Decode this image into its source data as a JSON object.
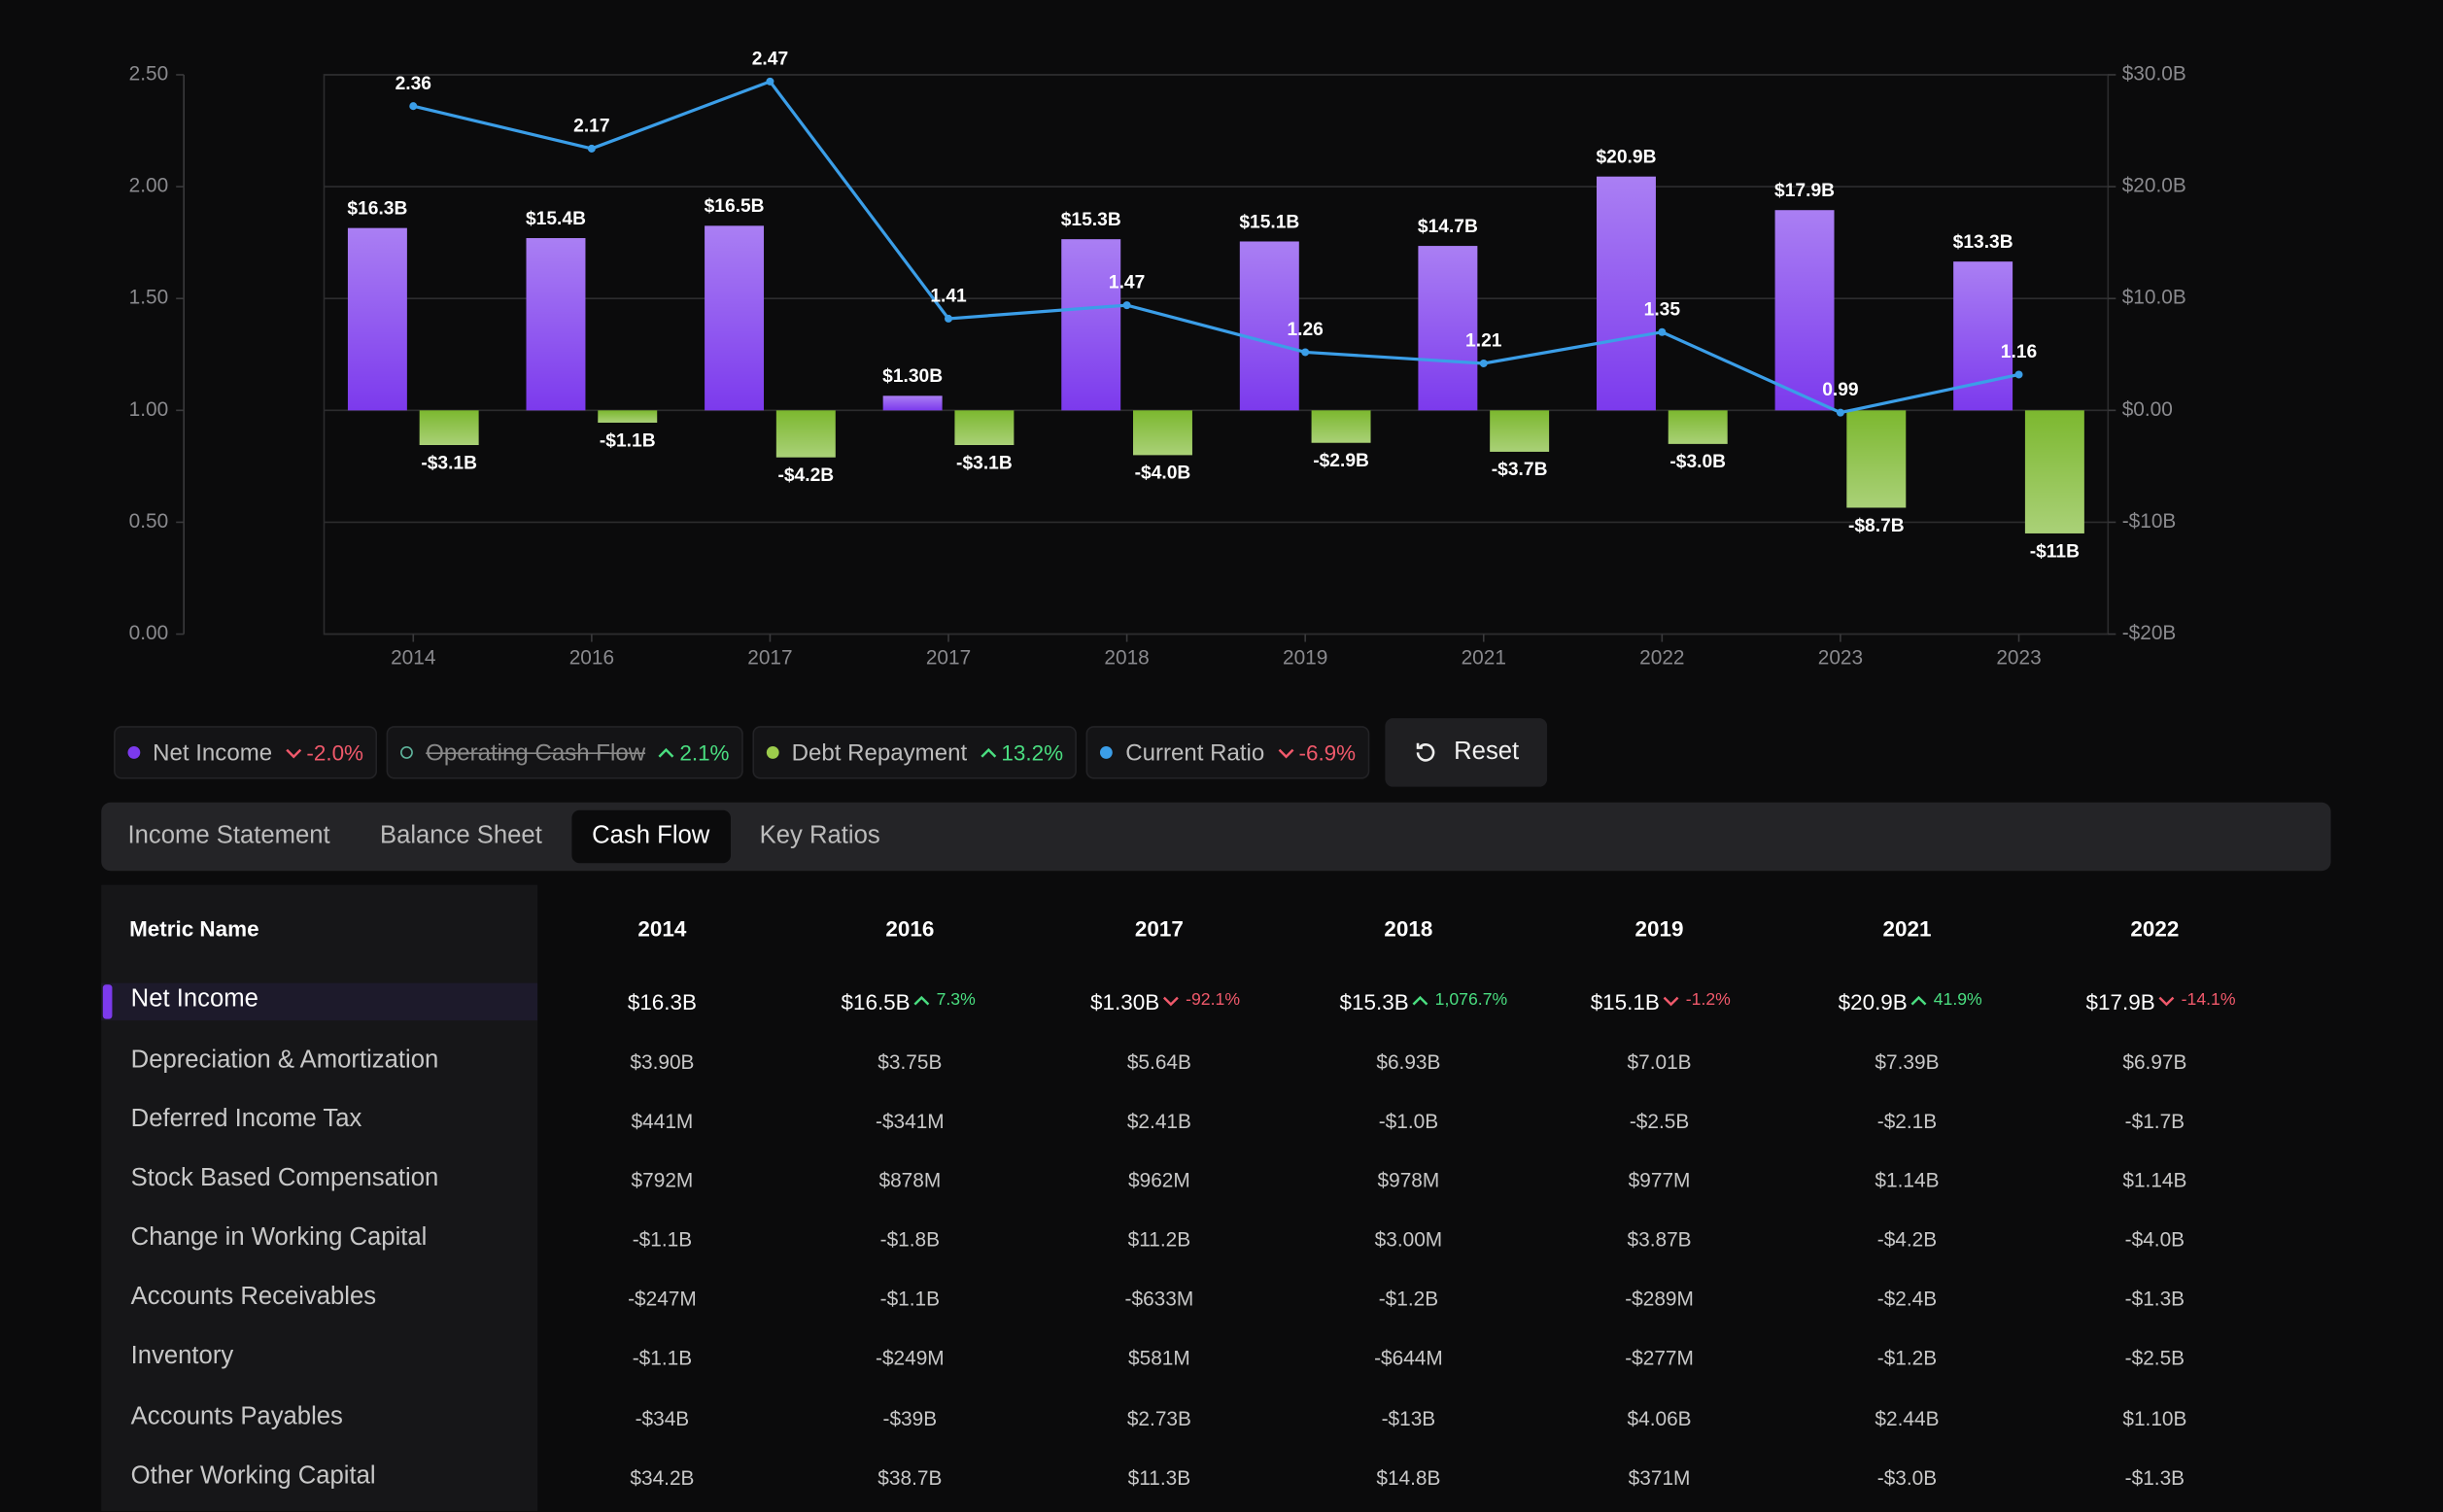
{
  "chart_data": {
    "type": "bar-line",
    "categories": [
      "2014",
      "2016",
      "2017",
      "2017",
      "2018",
      "2019",
      "2021",
      "2022",
      "2023",
      "2023"
    ],
    "series": [
      {
        "name": "Net Income",
        "type": "bar",
        "axis": "y2",
        "color": "#7c3aed",
        "values": [
          16.3,
          15.4,
          16.5,
          1.3,
          15.3,
          15.1,
          14.7,
          20.9,
          17.9,
          13.3
        ],
        "value_labels": [
          "$16.3B",
          "$15.4B",
          "$16.5B",
          "$1.30B",
          "$15.3B",
          "$15.1B",
          "$14.7B",
          "$20.9B",
          "$17.9B",
          "$13.3B"
        ]
      },
      {
        "name": "Debt Repayment",
        "type": "bar",
        "axis": "y2",
        "color": "#7cb82f",
        "values": [
          -3.1,
          -1.1,
          -4.2,
          -3.1,
          -4.0,
          -2.9,
          -3.7,
          -3.0,
          -8.7,
          -11
        ],
        "value_labels": [
          "-$3.1B",
          "-$1.1B",
          "-$4.2B",
          "-$3.1B",
          "-$4.0B",
          "-$2.9B",
          "-$3.7B",
          "-$3.0B",
          "-$8.7B",
          "-$11B"
        ]
      },
      {
        "name": "Current Ratio",
        "type": "line",
        "color": "#3b9ee8",
        "values": [
          2.36,
          2.17,
          2.47,
          1.41,
          1.47,
          1.26,
          1.21,
          1.35,
          0.99,
          1.16
        ]
      }
    ],
    "ylim": [
      0,
      2.5
    ],
    "yticks": [
      {
        "value": 0,
        "label": "0.00"
      },
      {
        "value": 0.5,
        "label": "0.50"
      },
      {
        "value": 1,
        "label": "1.00"
      },
      {
        "value": 1.5,
        "label": "1.50"
      },
      {
        "value": 2,
        "label": "2.00"
      },
      {
        "value": 2.5,
        "label": "2.50"
      }
    ],
    "y2lim": [
      -20,
      30
    ],
    "y2ticks": [
      {
        "value": -20,
        "label": "-$20B"
      },
      {
        "value": -10,
        "label": "-$10B"
      },
      {
        "value": 0,
        "label": "$0.00"
      },
      {
        "value": 10,
        "label": "$10.0B"
      },
      {
        "value": 20,
        "label": "$20.0B"
      },
      {
        "value": 30,
        "label": "$30.0B"
      }
    ],
    "grid": true
  },
  "legend": [
    {
      "label": "Net Income",
      "change": "-2.0%",
      "trend": "down",
      "color": "#7c3aed"
    },
    {
      "label": "Operating Cash Flow",
      "change": "2.1%",
      "trend": "up",
      "color": "#5fb49c",
      "hidden": true
    },
    {
      "label": "Debt Repayment",
      "change": "13.2%",
      "trend": "up",
      "color": "#9ccc4c"
    },
    {
      "label": "Current Ratio",
      "change": "-6.9%",
      "trend": "down",
      "color": "#3b9ee8"
    }
  ],
  "reset_button": "Reset",
  "tabs": {
    "items": [
      "Income Statement",
      "Balance Sheet",
      "Cash Flow",
      "Key Ratios"
    ],
    "active": 2
  },
  "table": {
    "header": "Metric Name",
    "columns": [
      "2014",
      "2016",
      "2017",
      "2018",
      "2019",
      "2021",
      "2022"
    ],
    "rows": [
      {
        "metric": "Net Income",
        "values": [
          "$16.3B",
          "$16.5B",
          "$1.30B",
          "$15.3B",
          "$15.1B",
          "$20.9B",
          "$17.9B"
        ],
        "changes": [
          null,
          {
            "text": "7.3%",
            "trend": "up"
          },
          {
            "text": "-92.1%",
            "trend": "down"
          },
          {
            "text": "1,076.7%",
            "trend": "up"
          },
          {
            "text": "-1.2%",
            "trend": "down"
          },
          {
            "text": "41.9%",
            "trend": "up"
          },
          {
            "text": "-14.1%",
            "trend": "down"
          }
        ]
      },
      {
        "metric": "Depreciation & Amortization",
        "values": [
          "$3.90B",
          "$3.75B",
          "$5.64B",
          "$6.93B",
          "$7.01B",
          "$7.39B",
          "$6.97B"
        ]
      },
      {
        "metric": "Deferred Income Tax",
        "values": [
          "$441M",
          "-$341M",
          "$2.41B",
          "-$1.0B",
          "-$2.5B",
          "-$2.1B",
          "-$1.7B"
        ]
      },
      {
        "metric": "Stock Based Compensation",
        "values": [
          "$792M",
          "$878M",
          "$962M",
          "$978M",
          "$977M",
          "$1.14B",
          "$1.14B"
        ]
      },
      {
        "metric": "Change in Working Capital",
        "values": [
          "-$1.1B",
          "-$1.8B",
          "$11.2B",
          "$3.00M",
          "$3.87B",
          "-$4.2B",
          "-$4.0B"
        ]
      },
      {
        "metric": "Accounts Receivables",
        "values": [
          "-$247M",
          "-$1.1B",
          "-$633M",
          "-$1.2B",
          "-$289M",
          "-$2.4B",
          "-$1.3B"
        ]
      },
      {
        "metric": "Inventory",
        "values": [
          "-$1.1B",
          "-$249M",
          "$581M",
          "-$644M",
          "-$277M",
          "-$1.2B",
          "-$2.5B"
        ]
      },
      {
        "metric": "Accounts Payables",
        "values": [
          "-$34B",
          "-$39B",
          "$2.73B",
          "-$13B",
          "$4.06B",
          "$2.44B",
          "$1.10B"
        ]
      },
      {
        "metric": "Other Working Capital",
        "values": [
          "$34.2B",
          "$38.7B",
          "$11.3B",
          "$14.8B",
          "$371M",
          "-$3.0B",
          "-$1.3B"
        ]
      }
    ]
  }
}
